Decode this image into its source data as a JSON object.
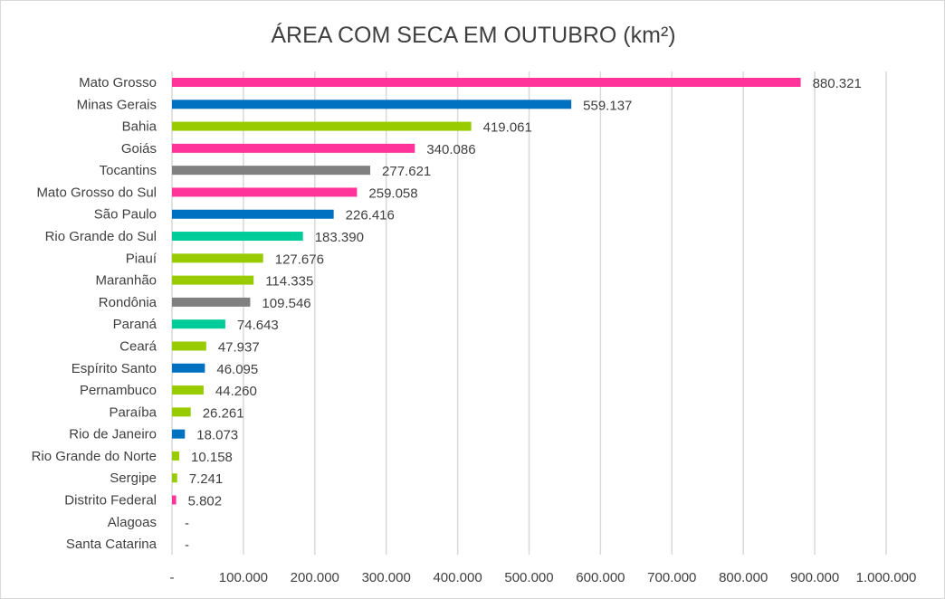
{
  "chart_data": {
    "type": "bar",
    "orientation": "horizontal",
    "title": "ÁREA COM SECA EM OUTUBRO (km²)",
    "xlabel": "",
    "ylabel": "",
    "xlim": [
      0,
      1000000
    ],
    "x_ticks": [
      "-",
      "100.000",
      "200.000",
      "300.000",
      "400.000",
      "500.000",
      "600.000",
      "700.000",
      "800.000",
      "900.000",
      "1.000.000"
    ],
    "grid": "vertical",
    "legend": "none",
    "categories": [
      "Mato Grosso",
      "Minas Gerais",
      "Bahia",
      "Goiás",
      "Tocantins",
      "Mato Grosso do Sul",
      "São Paulo",
      "Rio Grande do Sul",
      "Piauí",
      "Maranhão",
      "Rondônia",
      "Paraná",
      "Ceará",
      "Espírito Santo",
      "Pernambuco",
      "Paraíba",
      "Rio de Janeiro",
      "Rio Grande do Norte",
      "Sergipe",
      "Distrito Federal",
      "Alagoas",
      "Santa Catarina"
    ],
    "values": [
      880321,
      559137,
      419061,
      340086,
      277621,
      259058,
      226416,
      183390,
      127676,
      114335,
      109546,
      74643,
      47937,
      46095,
      44260,
      26261,
      18073,
      10158,
      7241,
      5802,
      0,
      0
    ],
    "data_labels": [
      "880.321",
      "559.137",
      "419.061",
      "340.086",
      "277.621",
      "259.058",
      "226.416",
      "183.390",
      "127.676",
      "114.335",
      "109.546",
      "74.643",
      "47.937",
      "46.095",
      "44.260",
      "26.261",
      "18.073",
      "10.158",
      "7.241",
      "5.802",
      "-",
      "-"
    ],
    "bar_colors": [
      "#FF3399",
      "#0070C0",
      "#99CC00",
      "#FF3399",
      "#808080",
      "#FF3399",
      "#0070C0",
      "#00CC99",
      "#99CC00",
      "#99CC00",
      "#808080",
      "#00CC99",
      "#99CC00",
      "#0070C0",
      "#99CC00",
      "#99CC00",
      "#0070C0",
      "#99CC00",
      "#99CC00",
      "#FF3399",
      "#FF3399",
      "#FF3399"
    ]
  }
}
